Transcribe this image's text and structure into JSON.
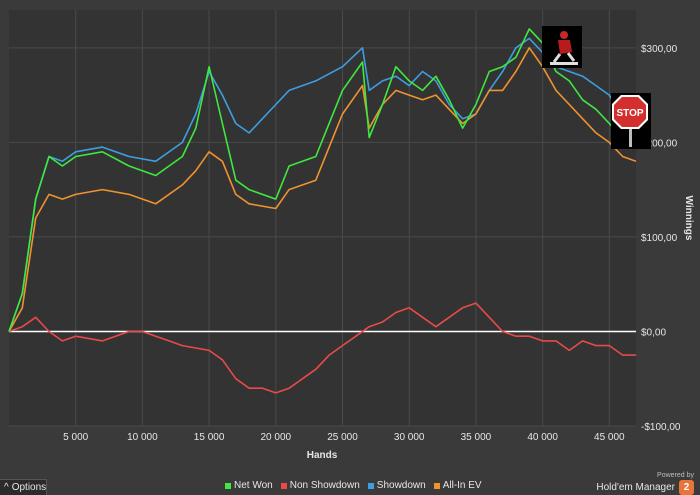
{
  "chart_data": {
    "type": "line",
    "xlabel": "Hands",
    "ylabel": "Winnings",
    "xlim": [
      0,
      47000
    ],
    "ylim": [
      -100,
      340
    ],
    "x_ticks": [
      5000,
      10000,
      15000,
      20000,
      25000,
      30000,
      35000,
      40000,
      45000
    ],
    "x_tick_labels": [
      "5 000",
      "10 000",
      "15 000",
      "20 000",
      "25 000",
      "30 000",
      "35 000",
      "40 000",
      "45 000"
    ],
    "y_ticks": [
      -100,
      0,
      100,
      200,
      300
    ],
    "y_tick_labels": [
      "-$100,00",
      "$0,00",
      "$100,00",
      "$200,00",
      "$300,00"
    ],
    "grid": true,
    "legend_position": "bottom",
    "series": [
      {
        "name": "Net Won",
        "color": "#3ee83e",
        "x": [
          0,
          1000,
          2000,
          3000,
          4000,
          5000,
          7000,
          9000,
          11000,
          13000,
          14000,
          15000,
          16000,
          17000,
          18000,
          20000,
          21000,
          23000,
          25000,
          26500,
          27000,
          28000,
          29000,
          30000,
          31000,
          32000,
          33000,
          34000,
          35000,
          36000,
          37000,
          38000,
          39000,
          40000,
          41000,
          42000,
          43000,
          44000,
          45000,
          46000,
          47000
        ],
        "y": [
          0,
          40,
          140,
          185,
          175,
          185,
          190,
          175,
          165,
          185,
          215,
          280,
          220,
          160,
          150,
          140,
          175,
          185,
          255,
          285,
          205,
          240,
          280,
          265,
          255,
          270,
          245,
          215,
          240,
          275,
          280,
          290,
          320,
          305,
          275,
          265,
          245,
          235,
          220,
          205,
          205
        ]
      },
      {
        "name": "Non Showdown",
        "color": "#e84a4a",
        "x": [
          0,
          1000,
          2000,
          3000,
          4000,
          5000,
          7000,
          9000,
          10000,
          11000,
          12000,
          13000,
          15000,
          16000,
          17000,
          18000,
          19000,
          20000,
          21000,
          22000,
          23000,
          24000,
          25000,
          26000,
          27000,
          28000,
          29000,
          30000,
          31000,
          32000,
          33000,
          34000,
          35000,
          36000,
          37000,
          38000,
          39000,
          40000,
          41000,
          42000,
          43000,
          44000,
          45000,
          46000,
          47000
        ],
        "y": [
          0,
          5,
          15,
          0,
          -10,
          -5,
          -10,
          0,
          0,
          -5,
          -10,
          -15,
          -20,
          -30,
          -50,
          -60,
          -60,
          -65,
          -60,
          -50,
          -40,
          -25,
          -15,
          -5,
          5,
          10,
          20,
          25,
          15,
          5,
          15,
          25,
          30,
          15,
          0,
          -5,
          -5,
          -10,
          -10,
          -20,
          -10,
          -15,
          -15,
          -25,
          -25
        ]
      },
      {
        "name": "Showdown",
        "color": "#3d9ee0",
        "x": [
          0,
          1000,
          2000,
          3000,
          4000,
          5000,
          7000,
          9000,
          11000,
          13000,
          14000,
          15000,
          16000,
          17000,
          18000,
          20000,
          21000,
          23000,
          25000,
          26500,
          27000,
          28000,
          29000,
          30000,
          31000,
          32000,
          33000,
          34000,
          35000,
          36000,
          37000,
          38000,
          39000,
          40000,
          41000,
          42000,
          43000,
          44000,
          45000,
          46000,
          47000
        ],
        "y": [
          0,
          40,
          140,
          185,
          180,
          190,
          195,
          185,
          180,
          200,
          230,
          275,
          250,
          220,
          210,
          240,
          255,
          265,
          280,
          300,
          255,
          265,
          270,
          260,
          275,
          265,
          240,
          225,
          230,
          255,
          275,
          300,
          310,
          295,
          280,
          275,
          270,
          260,
          250,
          225,
          210
        ]
      },
      {
        "name": "All-In EV",
        "color": "#f0922e",
        "x": [
          0,
          1000,
          2000,
          3000,
          4000,
          5000,
          7000,
          9000,
          11000,
          13000,
          14000,
          15000,
          16000,
          17000,
          18000,
          20000,
          21000,
          23000,
          25000,
          26500,
          27000,
          28000,
          29000,
          30000,
          31000,
          32000,
          33000,
          34000,
          35000,
          36000,
          37000,
          38000,
          39000,
          40000,
          41000,
          42000,
          43000,
          44000,
          45000,
          46000,
          47000
        ],
        "y": [
          0,
          25,
          120,
          145,
          140,
          145,
          150,
          145,
          135,
          155,
          170,
          190,
          180,
          145,
          135,
          130,
          150,
          160,
          230,
          260,
          215,
          240,
          255,
          250,
          245,
          250,
          235,
          220,
          230,
          255,
          255,
          275,
          300,
          280,
          255,
          240,
          225,
          210,
          200,
          185,
          180
        ]
      }
    ]
  },
  "legend": [
    {
      "label": "Net Won",
      "color": "#3ee83e"
    },
    {
      "label": "Non Showdown",
      "color": "#e84a4a"
    },
    {
      "label": "Showdown",
      "color": "#3d9ee0"
    },
    {
      "label": "All-In EV",
      "color": "#f0922e"
    }
  ],
  "options_label": "Options",
  "brand": {
    "powered_by": "Powered by",
    "name": "Hold'em Manager",
    "badge": "2"
  },
  "stop_sign_text": "STOP"
}
